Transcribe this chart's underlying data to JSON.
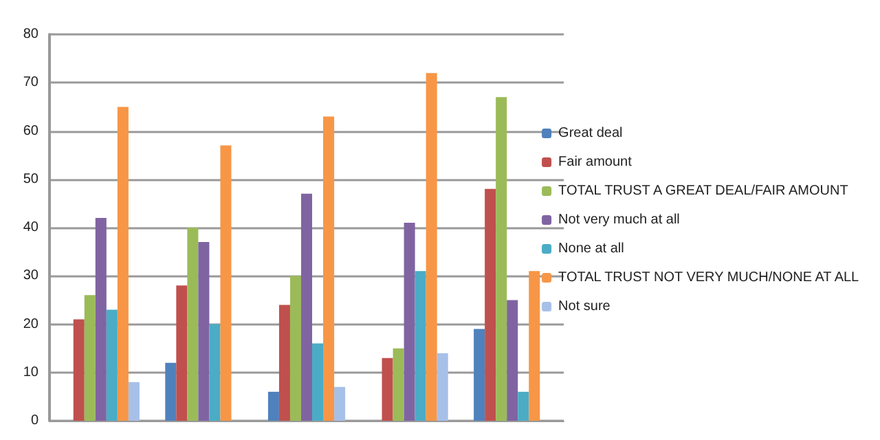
{
  "chart_data": {
    "type": "bar",
    "categories": [
      null,
      null,
      null,
      null,
      null
    ],
    "series": [
      {
        "name": "Great deal",
        "color": "#4f81bd",
        "values": [
          null,
          12,
          6,
          null,
          19
        ]
      },
      {
        "name": "Fair amount",
        "color": "#c0504d",
        "values": [
          21,
          28,
          24,
          13,
          48
        ]
      },
      {
        "name": "TOTAL TRUST A GREAT DEAL/FAIR AMOUNT",
        "color": "#9bbb59",
        "values": [
          26,
          40,
          30,
          15,
          67
        ]
      },
      {
        "name": "Not very much at all",
        "color": "#8064a2",
        "values": [
          42,
          37,
          47,
          41,
          25
        ]
      },
      {
        "name": "None at all",
        "color": "#4bacc6",
        "values": [
          23,
          20,
          16,
          31,
          6
        ]
      },
      {
        "name": "TOTAL TRUST NOT VERY MUCH/NONE AT ALL",
        "color": "#f79646",
        "values": [
          65,
          57,
          63,
          72,
          31
        ]
      },
      {
        "name": "Not sure",
        "color": "#a7c0e8",
        "values": [
          8,
          null,
          7,
          14,
          null
        ]
      }
    ],
    "ylim": [
      0,
      80
    ],
    "yticks": [
      0,
      10,
      20,
      30,
      40,
      50,
      60,
      70,
      80
    ],
    "grid": "y",
    "legend": "right",
    "tick_labels": "y"
  }
}
